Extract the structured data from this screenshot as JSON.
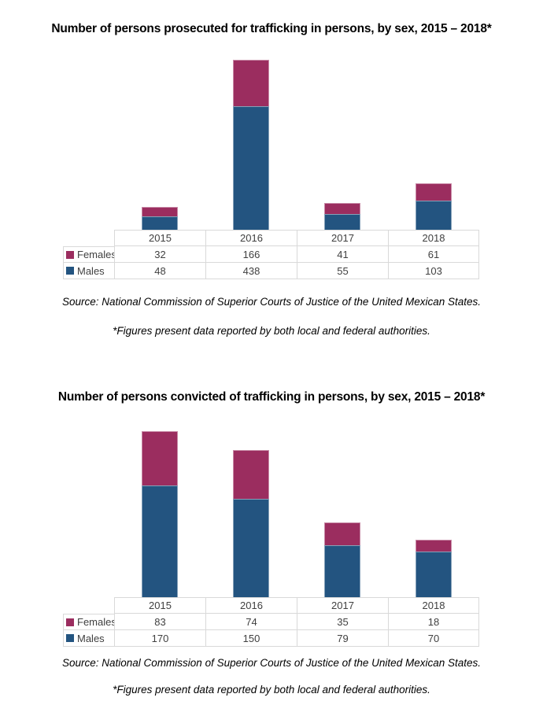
{
  "colors": {
    "females": "#9B2D5F",
    "males": "#235480",
    "table_border": "#D9D9D9",
    "table_text": "#404040"
  },
  "chart_data": [
    {
      "type": "bar",
      "stacked": true,
      "title": "Number of persons prosecuted for trafficking in persons, by sex, 2015 – 2018*",
      "categories": [
        "2015",
        "2016",
        "2017",
        "2018"
      ],
      "series": [
        {
          "name": "Females",
          "color": "#9B2D5F",
          "values": [
            32,
            166,
            41,
            61
          ]
        },
        {
          "name": "Males",
          "color": "#235480",
          "values": [
            48,
            438,
            55,
            103
          ]
        }
      ],
      "ylim": [
        0,
        604
      ],
      "grid": false,
      "legend_position": "left-of-data-table",
      "data_table_shown": true,
      "xlabel": "",
      "ylabel": "",
      "source": "Source: National Commission of Superior Courts of Justice of the United Mexican States.",
      "footnote": "*Figures present data reported by both local and federal authorities."
    },
    {
      "type": "bar",
      "stacked": true,
      "title": "Number of persons convicted of trafficking in persons, by sex, 2015 – 2018*",
      "categories": [
        "2015",
        "2016",
        "2017",
        "2018"
      ],
      "series": [
        {
          "name": "Females",
          "color": "#9B2D5F",
          "values": [
            83,
            74,
            35,
            18
          ]
        },
        {
          "name": "Males",
          "color": "#235480",
          "values": [
            170,
            150,
            79,
            70
          ]
        }
      ],
      "ylim": [
        0,
        253
      ],
      "grid": false,
      "legend_position": "left-of-data-table",
      "data_table_shown": true,
      "xlabel": "",
      "ylabel": "",
      "source": "Source: National Commission of Superior Courts of Justice of the United Mexican States.",
      "footnote": "*Figures present data reported by both local and federal authorities."
    }
  ]
}
